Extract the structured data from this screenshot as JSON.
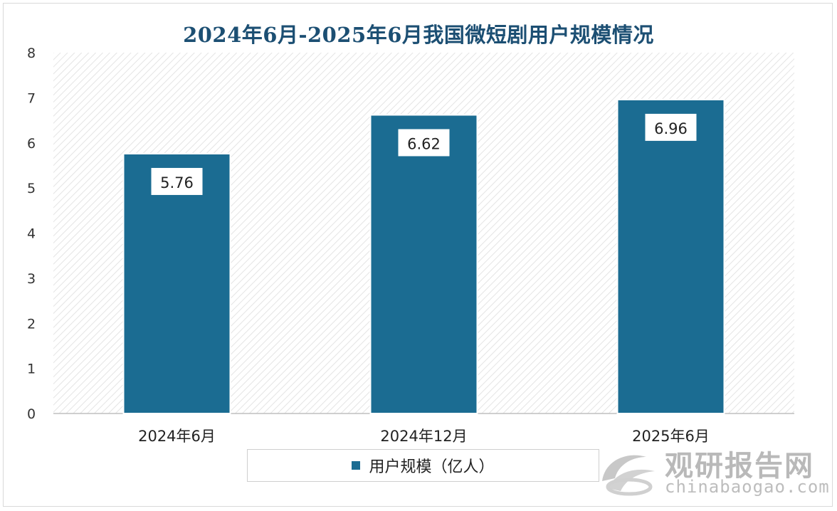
{
  "chart_data": {
    "type": "bar",
    "title": "2024年6月-2025年6月我国微短剧用户规模情况",
    "categories": [
      "2024年6月",
      "2024年12月",
      "2025年6月"
    ],
    "series": [
      {
        "name": "用户规模（亿人）",
        "values": [
          5.76,
          6.62,
          6.96
        ]
      }
    ],
    "data_labels": [
      "5.76",
      "6.62",
      "6.96"
    ],
    "ylim": [
      0,
      8
    ],
    "yticks": [
      "0",
      "1",
      "2",
      "3",
      "4",
      "5",
      "6",
      "7",
      "8"
    ],
    "xlabel": "",
    "ylabel": "",
    "grid": false,
    "legend_position": "bottom",
    "colors": {
      "bar": "#1b6c92",
      "title": "#1c4f73",
      "plot_hatch": "#e6e6e6"
    }
  },
  "watermark": {
    "name": "观研报告网",
    "url": "chinabaogao.com"
  }
}
